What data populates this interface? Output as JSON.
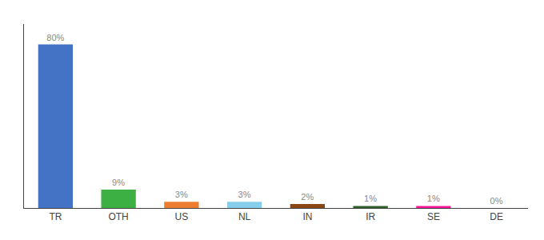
{
  "chart_data": {
    "type": "bar",
    "categories": [
      "TR",
      "OTH",
      "US",
      "NL",
      "IN",
      "IR",
      "SE",
      "DE"
    ],
    "values": [
      80,
      9,
      3,
      3,
      2,
      1,
      1,
      0
    ],
    "value_labels": [
      "80%",
      "9%",
      "3%",
      "3%",
      "2%",
      "1%",
      "1%",
      "0%"
    ],
    "colors": [
      "#4472C4",
      "#3CB043",
      "#ED7D31",
      "#87CEEB",
      "#8B4513",
      "#2E5E2E",
      "#FF1493",
      "#8B0000"
    ],
    "ylim": [
      0,
      90
    ],
    "data_labels": true,
    "tick_labels": "x",
    "grid": false
  }
}
